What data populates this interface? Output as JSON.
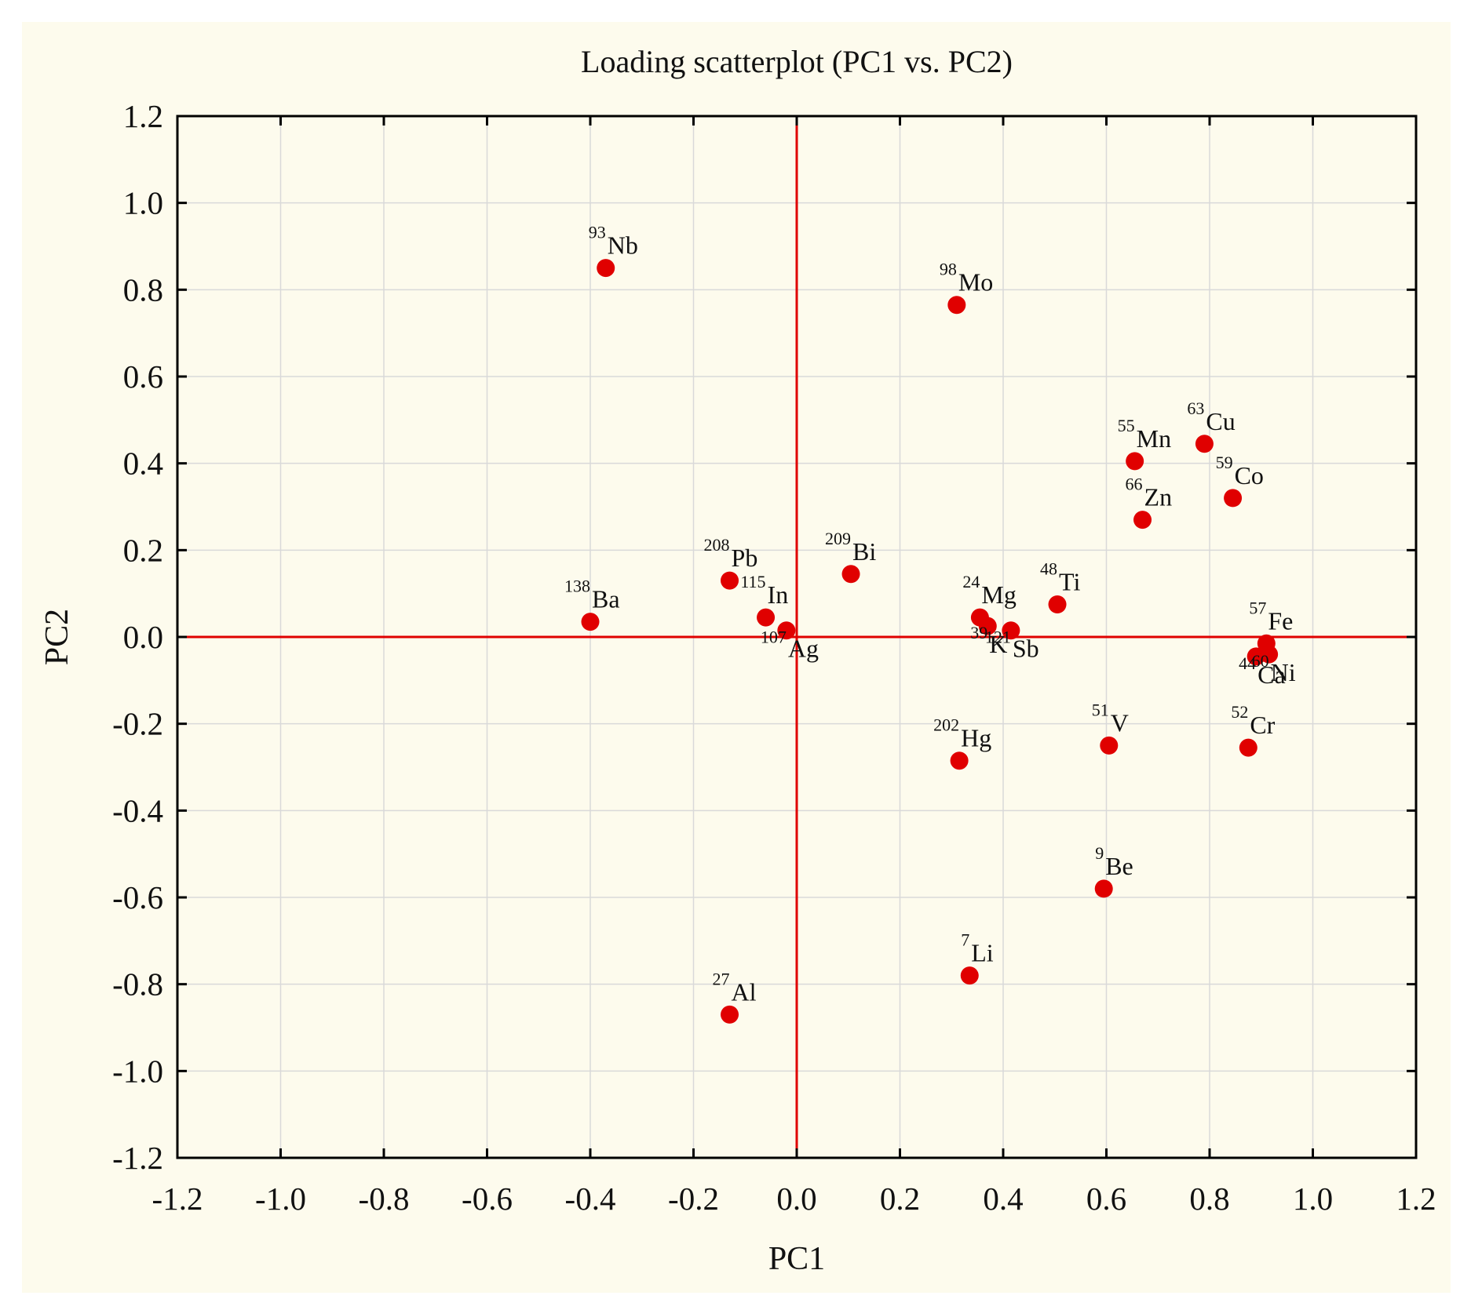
{
  "chart_data": {
    "type": "scatter",
    "title": "Loading scatterplot (PC1 vs. PC2)",
    "xlabel": "PC1",
    "ylabel": "PC2",
    "xlim": [
      -1.2,
      1.2
    ],
    "ylim": [
      -1.2,
      1.2
    ],
    "xticks": [
      "-1.2",
      "-1.0",
      "-0.8",
      "-0.6",
      "-0.4",
      "-0.2",
      "0.0",
      "0.2",
      "0.4",
      "0.6",
      "0.8",
      "1.0",
      "1.2"
    ],
    "yticks": [
      "1.2",
      "1.0",
      "0.8",
      "0.6",
      "0.4",
      "0.2",
      "0.0",
      "-0.2",
      "-0.4",
      "-0.6",
      "-0.8",
      "-1.0",
      "-1.2"
    ],
    "grid": true,
    "reference_lines": {
      "x": 0.0,
      "y": 0.0,
      "color": "#e00000"
    },
    "point_color": "#e00000",
    "points": [
      {
        "mass": "93",
        "element": "Nb",
        "x": -0.37,
        "y": 0.85,
        "label_side": "upper"
      },
      {
        "mass": "98",
        "element": "Mo",
        "x": 0.31,
        "y": 0.765,
        "label_side": "upper"
      },
      {
        "mass": "63",
        "element": "Cu",
        "x": 0.79,
        "y": 0.445,
        "label_side": "upper"
      },
      {
        "mass": "55",
        "element": "Mn",
        "x": 0.655,
        "y": 0.405,
        "label_side": "upper"
      },
      {
        "mass": "59",
        "element": "Co",
        "x": 0.845,
        "y": 0.32,
        "label_side": "upper"
      },
      {
        "mass": "66",
        "element": "Zn",
        "x": 0.67,
        "y": 0.27,
        "label_side": "upper"
      },
      {
        "mass": "209",
        "element": "Bi",
        "x": 0.105,
        "y": 0.145,
        "label_side": "upper"
      },
      {
        "mass": "208",
        "element": "Pb",
        "x": -0.13,
        "y": 0.13,
        "label_side": "upper"
      },
      {
        "mass": "48",
        "element": "Ti",
        "x": 0.505,
        "y": 0.075,
        "label_side": "upper"
      },
      {
        "mass": "138",
        "element": "Ba",
        "x": -0.4,
        "y": 0.035,
        "label_side": "upper"
      },
      {
        "mass": "115",
        "element": "In",
        "x": -0.06,
        "y": 0.045,
        "label_side": "upper"
      },
      {
        "mass": "24",
        "element": "Mg",
        "x": 0.355,
        "y": 0.045,
        "label_side": "upper"
      },
      {
        "mass": "39",
        "element": "K",
        "x": 0.37,
        "y": 0.025,
        "label_side": "lower"
      },
      {
        "mass": "121",
        "element": "Sb",
        "x": 0.415,
        "y": 0.015,
        "label_side": "lower"
      },
      {
        "mass": "107",
        "element": "Ag",
        "x": -0.02,
        "y": 0.015,
        "label_side": "lower"
      },
      {
        "mass": "57",
        "element": "Fe",
        "x": 0.91,
        "y": -0.015,
        "label_side": "upper"
      },
      {
        "mass": "44",
        "element": "Ca",
        "x": 0.89,
        "y": -0.045,
        "label_side": "lower"
      },
      {
        "mass": "60",
        "element": "Ni",
        "x": 0.915,
        "y": -0.04,
        "label_side": "lower"
      },
      {
        "mass": "51",
        "element": "V",
        "x": 0.605,
        "y": -0.25,
        "label_side": "upper"
      },
      {
        "mass": "52",
        "element": "Cr",
        "x": 0.875,
        "y": -0.255,
        "label_side": "upper"
      },
      {
        "mass": "202",
        "element": "Hg",
        "x": 0.315,
        "y": -0.285,
        "label_side": "upper"
      },
      {
        "mass": "9",
        "element": "Be",
        "x": 0.595,
        "y": -0.58,
        "label_side": "upper"
      },
      {
        "mass": "7",
        "element": "Li",
        "x": 0.335,
        "y": -0.78,
        "label_side": "upper"
      },
      {
        "mass": "27",
        "element": "Al",
        "x": -0.13,
        "y": -0.87,
        "label_side": "upper"
      }
    ]
  }
}
